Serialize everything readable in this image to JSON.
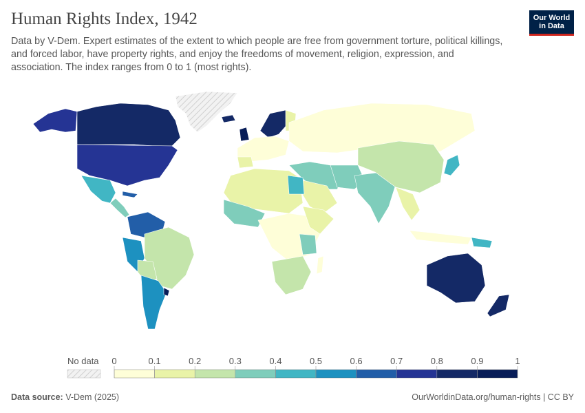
{
  "header": {
    "title": "Human Rights Index, 1942",
    "subtitle": "Data by V-Dem. Expert estimates of the extent to which people are free from government torture, political killings, and forced labor, have property rights, and enjoy the freedoms of movement, religion, expression, and association. The index ranges from 0 to 1 (most rights)."
  },
  "logo": {
    "line1": "Our World",
    "line2": "in Data",
    "bg": "#002147",
    "accent": "#ce261e"
  },
  "legend": {
    "no_data_label": "No data",
    "bins": [
      {
        "from": 0.0,
        "to": 0.1,
        "color": "#fefed8"
      },
      {
        "from": 0.1,
        "to": 0.2,
        "color": "#e9f3a8"
      },
      {
        "from": 0.2,
        "to": 0.3,
        "color": "#c4e5ab"
      },
      {
        "from": 0.3,
        "to": 0.4,
        "color": "#7fcdbb"
      },
      {
        "from": 0.4,
        "to": 0.5,
        "color": "#41b6c4"
      },
      {
        "from": 0.5,
        "to": 0.6,
        "color": "#1d91c0"
      },
      {
        "from": 0.6,
        "to": 0.7,
        "color": "#225ea8"
      },
      {
        "from": 0.7,
        "to": 0.8,
        "color": "#253494"
      },
      {
        "from": 0.8,
        "to": 0.9,
        "color": "#142966"
      },
      {
        "from": 0.9,
        "to": 1.0,
        "color": "#081d58"
      }
    ],
    "tick_labels": [
      "0",
      "0.1",
      "0.2",
      "0.3",
      "0.4",
      "0.5",
      "0.6",
      "0.7",
      "0.8",
      "0.9",
      "1"
    ]
  },
  "footer": {
    "source_label": "Data source:",
    "source_value": "V-Dem (2025)",
    "url": "OurWorldinData.org/human-rights | CC BY"
  }
}
